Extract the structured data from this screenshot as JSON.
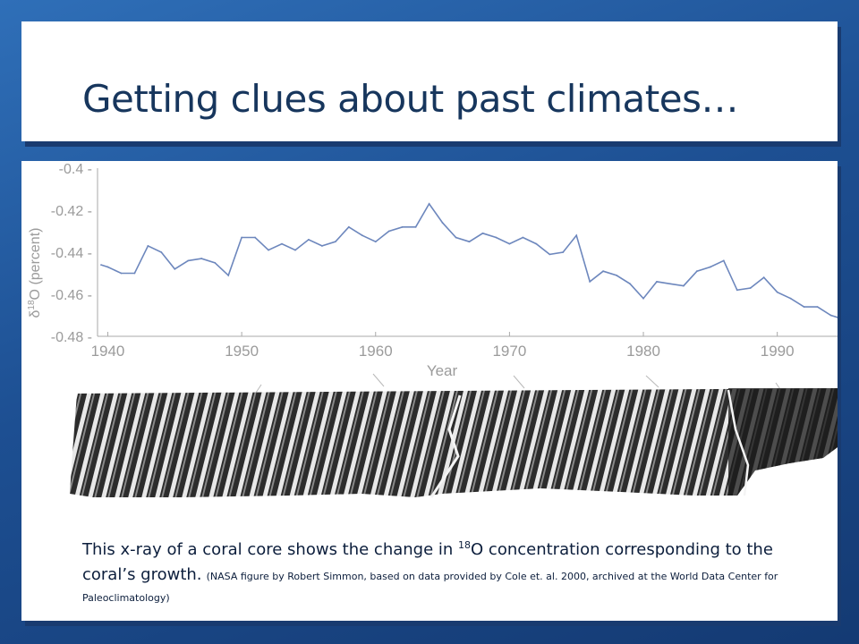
{
  "slide": {
    "title": "Getting clues about past climates…",
    "caption_part1": "This x-ray of a coral core shows the change in ",
    "caption_sup": "18",
    "caption_part2": "O concentration corresponding to the coral’s growth.",
    "caption_credit": "(NASA figure by Robert Simmon, based on data provided by Cole et. al. 2000, archived at the World Data Center for Paleoclimatology)"
  },
  "chart_data": {
    "type": "line",
    "title": "",
    "xlabel": "Year",
    "ylabel": "δ18O (percent)",
    "ylabel_main": "δ",
    "ylabel_sup": "18",
    "ylabel_rest": "O (percent)",
    "xlim": [
      1939.5,
      1994.5
    ],
    "ylim": [
      -0.48,
      -0.4
    ],
    "xticks": [
      1940,
      1950,
      1960,
      1970,
      1980,
      1990
    ],
    "yticks": [
      -0.4,
      -0.42,
      -0.44,
      -0.46,
      -0.48
    ],
    "ytick_labels": [
      "-0.4",
      "-0.42",
      "-0.44",
      "-0.46",
      "-0.48"
    ],
    "grid": false,
    "series": [
      {
        "name": "δ18O",
        "color": "#6d87bd",
        "x": [
          1939.5,
          1940,
          1941,
          1942,
          1943,
          1944,
          1945,
          1946,
          1947,
          1948,
          1949,
          1950,
          1951,
          1952,
          1953,
          1954,
          1955,
          1956,
          1957,
          1958,
          1959,
          1960,
          1961,
          1962,
          1963,
          1964,
          1965,
          1966,
          1967,
          1968,
          1969,
          1970,
          1971,
          1972,
          1973,
          1974,
          1975,
          1976,
          1977,
          1978,
          1979,
          1980,
          1981,
          1982,
          1983,
          1984,
          1985,
          1986,
          1987,
          1988,
          1989,
          1990,
          1991,
          1992,
          1993,
          1994,
          1994.5
        ],
        "y": [
          -0.446,
          -0.447,
          -0.45,
          -0.45,
          -0.437,
          -0.44,
          -0.448,
          -0.444,
          -0.443,
          -0.445,
          -0.451,
          -0.433,
          -0.433,
          -0.439,
          -0.436,
          -0.439,
          -0.434,
          -0.437,
          -0.435,
          -0.428,
          -0.432,
          -0.435,
          -0.43,
          -0.428,
          -0.428,
          -0.417,
          -0.426,
          -0.433,
          -0.435,
          -0.431,
          -0.433,
          -0.436,
          -0.433,
          -0.436,
          -0.441,
          -0.44,
          -0.432,
          -0.454,
          -0.449,
          -0.451,
          -0.455,
          -0.462,
          -0.454,
          -0.455,
          -0.456,
          -0.449,
          -0.447,
          -0.444,
          -0.458,
          -0.457,
          -0.452,
          -0.459,
          -0.462,
          -0.466,
          -0.466,
          -0.47,
          -0.471
        ]
      }
    ]
  },
  "colors": {
    "axis": "#a9a9a9",
    "tick_text": "#9b9b9b",
    "line": "#6d87bd",
    "title": "#17365d",
    "caption": "#0c1e3c"
  }
}
